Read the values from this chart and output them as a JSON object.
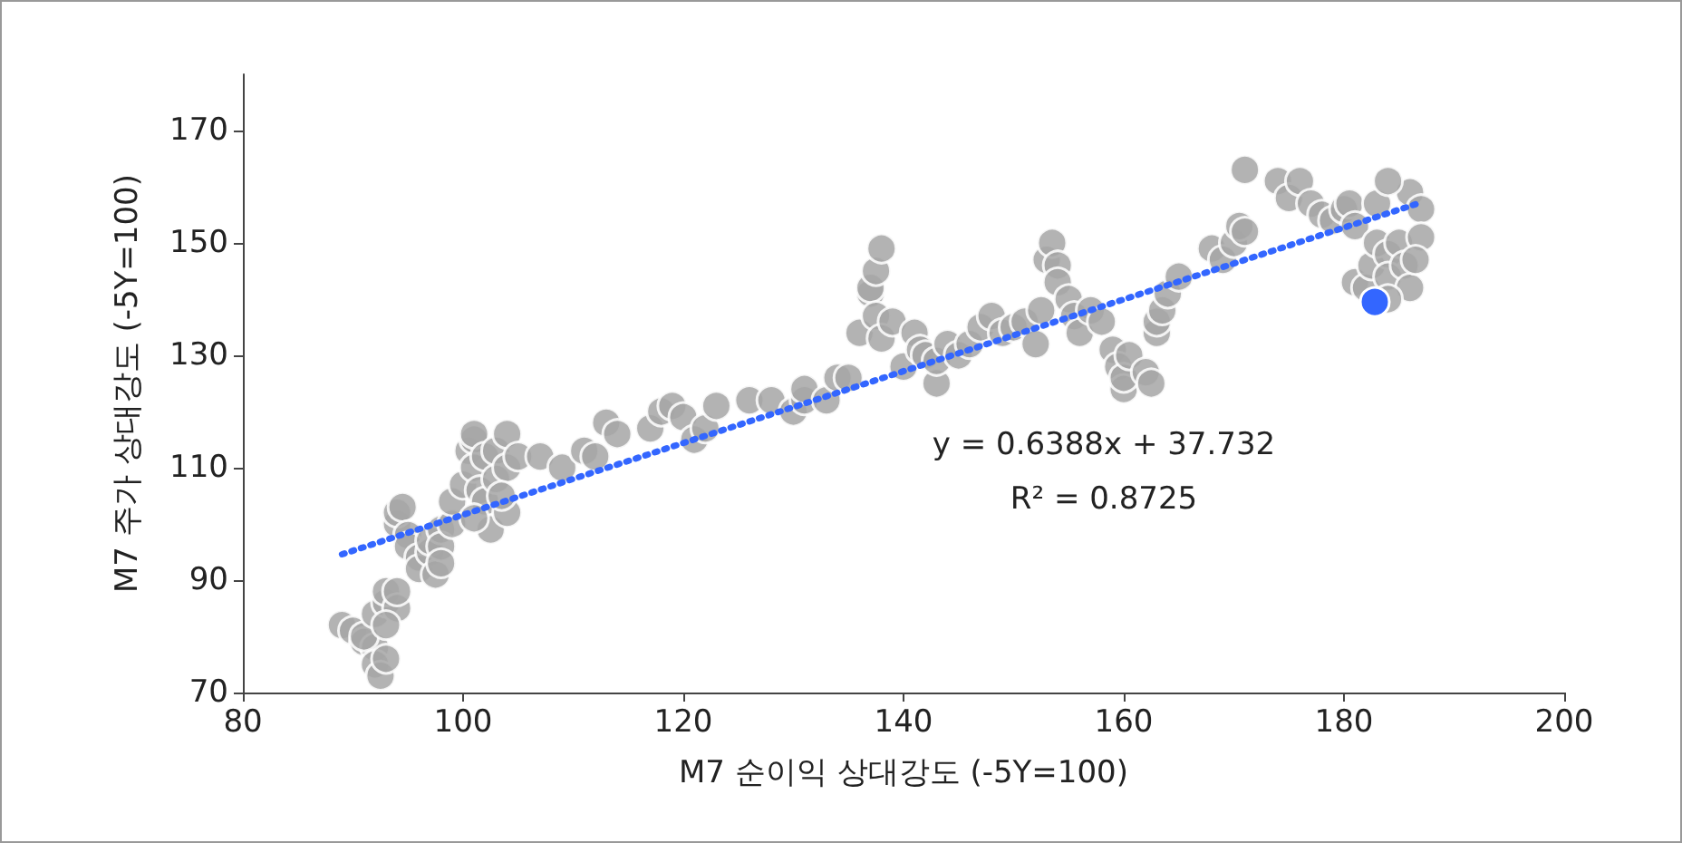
{
  "chart_data": {
    "type": "scatter",
    "xlabel": "M7 순이익 상대강도 (-5Y=100)",
    "ylabel": "M7 주가 상대강도 (-5Y=100)",
    "xlim": [
      80,
      200
    ],
    "xticks": [
      80,
      100,
      120,
      140,
      160,
      180,
      200
    ],
    "ylim": [
      70,
      180
    ],
    "yticks": [
      70,
      90,
      110,
      130,
      150,
      170
    ],
    "grid": false,
    "marker": "circle",
    "series": [
      {
        "color": "#a6a6a6",
        "x": [
          89,
          90,
          91,
          92,
          92,
          92.5,
          93,
          91,
          92,
          93,
          93,
          94,
          94,
          93,
          94,
          94,
          94.5,
          95,
          95,
          96,
          96,
          97,
          97,
          97.5,
          98,
          98,
          99,
          99,
          100,
          98,
          100.5,
          101,
          101,
          101,
          101.5,
          102,
          102,
          102.5,
          103,
          103,
          104,
          104,
          104,
          103.5,
          105,
          101,
          107,
          109,
          111,
          112,
          113,
          114,
          117,
          118,
          119,
          120,
          121,
          122,
          123,
          126,
          128,
          130,
          131,
          131,
          133,
          134,
          135,
          136,
          137,
          137,
          137.5,
          138,
          137.5,
          138,
          139,
          140,
          141,
          141.5,
          142,
          143,
          143,
          144,
          145,
          146,
          147,
          148,
          149,
          150,
          151,
          152,
          152.5,
          153,
          153.5,
          154,
          154,
          155,
          155.5,
          156,
          157,
          158,
          159,
          159.5,
          160,
          160,
          160.5,
          162,
          162.5,
          163,
          163,
          163.5,
          164,
          165,
          168,
          169,
          170,
          170.5,
          171,
          171,
          174,
          175,
          176,
          177,
          178,
          179,
          180,
          180.5,
          181,
          181,
          182,
          182.5,
          183,
          184,
          184,
          185,
          185.5,
          186,
          186,
          187,
          187,
          183,
          184,
          186.5,
          184
        ],
        "values": [
          82,
          81,
          79,
          78,
          75,
          73,
          76,
          80,
          84,
          86,
          88,
          85,
          88,
          82,
          100,
          102,
          103,
          98,
          96,
          94,
          92,
          95,
          97,
          91,
          99,
          96,
          100,
          104,
          107,
          93,
          113,
          115,
          116,
          110,
          106,
          104,
          112,
          99,
          113,
          108,
          116,
          110,
          102,
          105,
          112,
          101,
          112,
          110,
          113,
          112,
          118,
          116,
          117,
          120,
          121,
          119,
          115,
          117,
          121,
          122,
          122,
          120,
          122,
          124,
          122,
          126,
          126,
          134,
          141,
          142,
          145,
          149,
          137,
          133,
          136,
          128,
          134,
          131,
          130,
          125,
          129,
          132,
          130,
          132,
          135,
          137,
          134,
          135,
          136,
          132,
          138,
          147,
          150,
          146,
          143,
          140,
          137,
          134,
          138,
          136,
          131,
          128,
          124,
          126,
          130,
          127,
          125,
          134,
          136,
          138,
          141,
          144,
          149,
          147,
          150,
          153,
          152,
          163,
          161,
          158,
          161,
          157,
          155,
          154,
          156,
          157,
          153,
          143,
          142,
          146,
          150,
          148,
          144,
          150,
          146,
          142,
          159,
          156,
          151,
          157,
          161,
          147,
          140
        ]
      },
      {
        "color": "#3366ff",
        "x": [
          182.8
        ],
        "values": [
          139.5
        ]
      },
      {
        "type": "line",
        "color": "#3366ff",
        "line_style": "dotted",
        "marker": "none",
        "x": [
          89,
          187
        ],
        "values": [
          94.6,
          157.2
        ]
      }
    ],
    "annotations": [
      "y = 0.6388x + 37.732",
      "R² = 0.8725"
    ]
  }
}
